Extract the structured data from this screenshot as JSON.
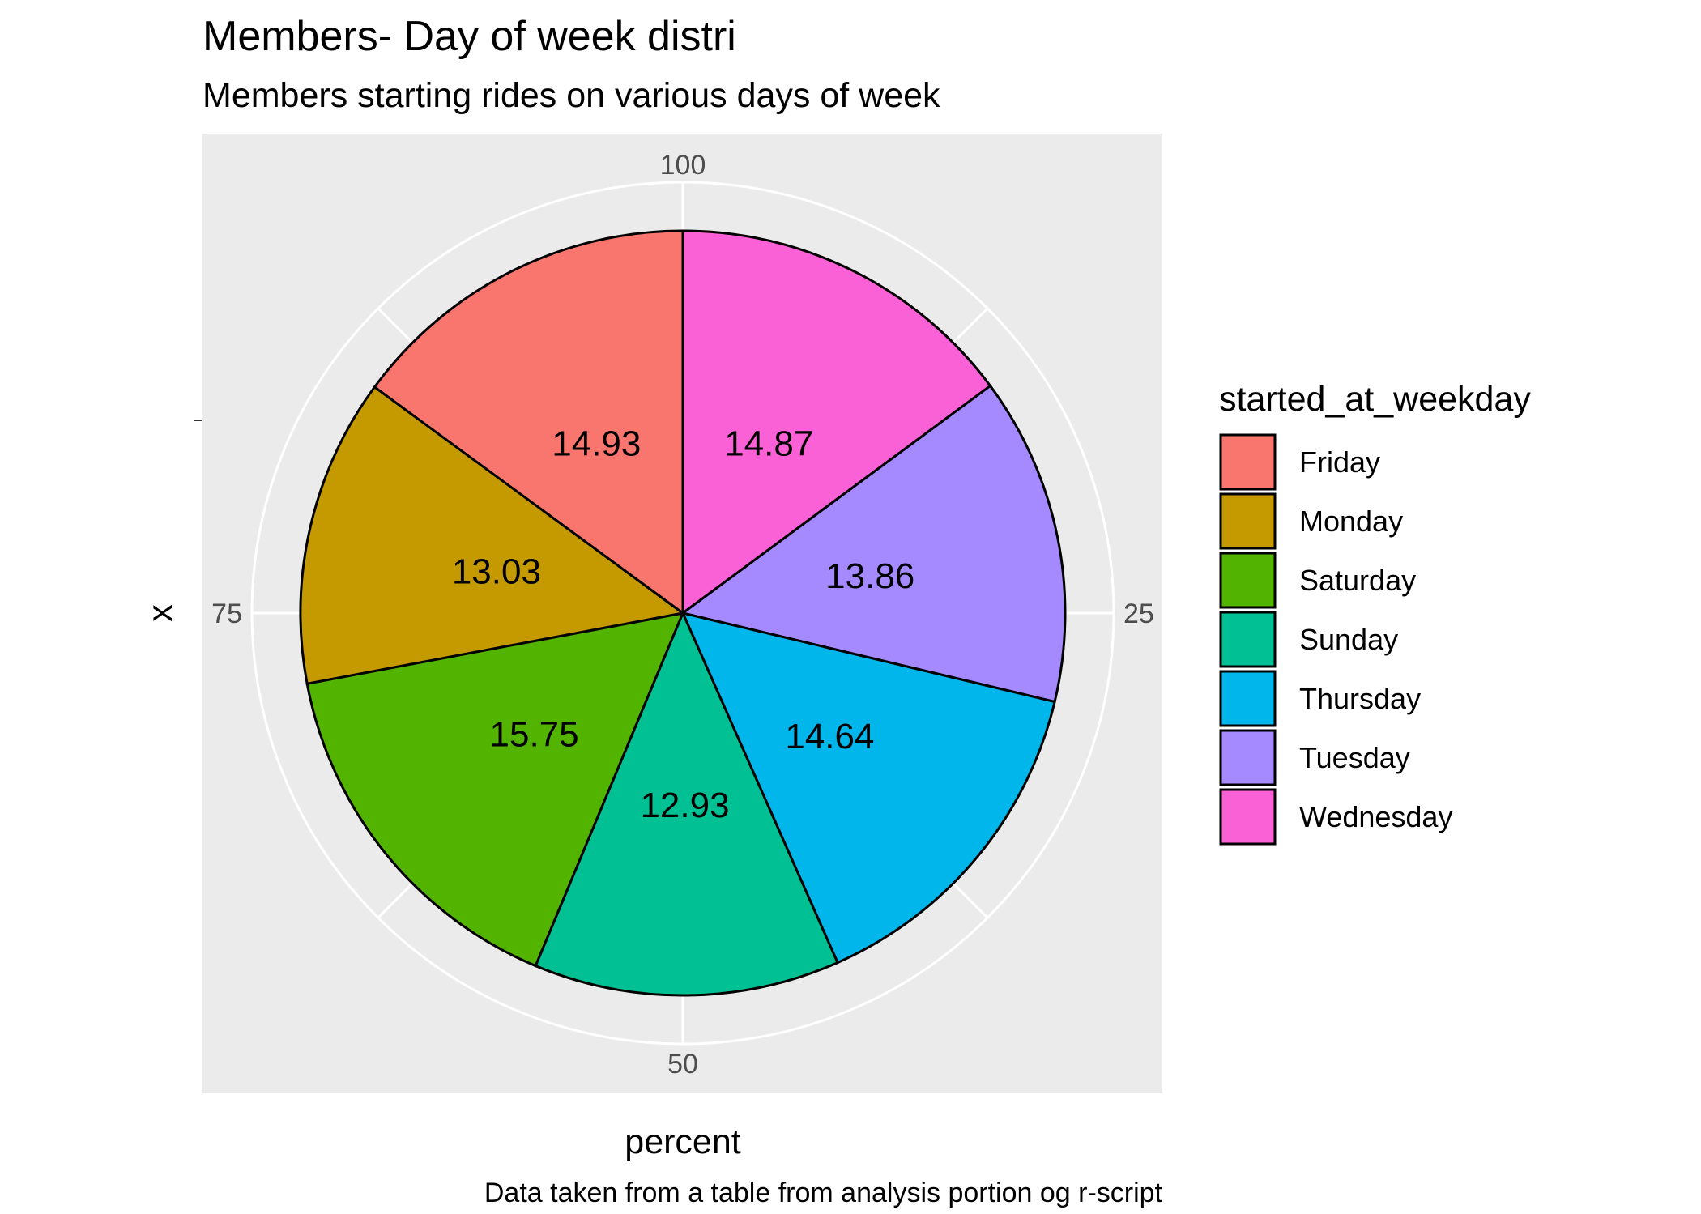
{
  "chart_data": {
    "type": "pie",
    "title": "Members- Day of week distri",
    "subtitle": "Members starting rides on various days of week",
    "xlabel": "percent",
    "ylabel": "x",
    "caption": "Data taken from a table from analysis portion og r-script",
    "theta_ticks": [
      "100",
      "25",
      "50",
      "75"
    ],
    "legend_title": "started_at_weekday",
    "legend_position": "right",
    "slices": [
      {
        "label": "Friday",
        "value": 14.93,
        "color": "#F8766D"
      },
      {
        "label": "Monday",
        "value": 13.03,
        "color": "#C49A00"
      },
      {
        "label": "Saturday",
        "value": 15.75,
        "color": "#53B400"
      },
      {
        "label": "Sunday",
        "value": 12.93,
        "color": "#00C094"
      },
      {
        "label": "Thursday",
        "value": 14.64,
        "color": "#00B6EB"
      },
      {
        "label": "Tuesday",
        "value": 13.86,
        "color": "#A58AFF"
      },
      {
        "label": "Wednesday",
        "value": 14.87,
        "color": "#FB61D7"
      }
    ],
    "panel_background": "#EBEBEB",
    "grid_color": "#FFFFFF"
  }
}
